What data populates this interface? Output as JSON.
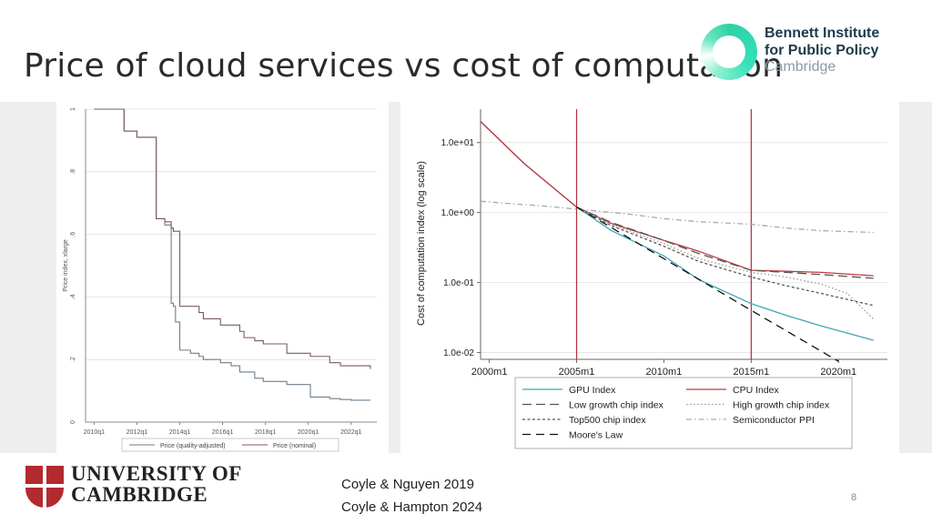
{
  "slide": {
    "title": "Price of cloud services vs cost of computation",
    "page_number": "8",
    "citations": [
      "Coyle & Nguyen 2019",
      "Coyle & Hampton 2024"
    ],
    "bennett_logo": [
      "Bennett Institute",
      "for Public Policy",
      "Cambridge"
    ],
    "cambridge_logo": [
      "UNIVERSITY OF",
      "CAMBRIDGE"
    ],
    "colors": {
      "bennett_green": "#2fd1a6",
      "cambridge_red": "#b22a2e"
    }
  },
  "chart_data": [
    {
      "type": "line",
      "ylabel": "Price index, xlarge",
      "xlabel": "",
      "ylim": [
        0,
        1
      ],
      "yticks": [
        "0",
        ".2",
        ".4",
        ".6",
        ".8",
        "1"
      ],
      "xticks": [
        "2010q1",
        "2012q1",
        "2014q1",
        "2016q1",
        "2018q1",
        "2020q1",
        "2022q1"
      ],
      "grid": true,
      "legend_position": "bottom",
      "x": [
        2010.0,
        2011.0,
        2011.4,
        2011.6,
        2012.0,
        2012.4,
        2012.8,
        2012.9,
        2013.2,
        2013.3,
        2013.6,
        2013.7,
        2013.8,
        2014.0,
        2014.3,
        2014.5,
        2014.9,
        2015.1,
        2015.5,
        2015.9,
        2016.4,
        2016.8,
        2017.0,
        2017.5,
        2017.9,
        2018.3,
        2019.0,
        2019.9,
        2020.1,
        2021.0,
        2021.5,
        2022.0,
        2022.9
      ],
      "series": [
        {
          "name": "Price (quality-adjusted)",
          "color": "#6e7f8c",
          "values": [
            1.0,
            1.0,
            0.93,
            0.93,
            0.91,
            0.91,
            0.91,
            0.65,
            0.65,
            0.63,
            0.38,
            0.37,
            0.32,
            0.23,
            0.23,
            0.22,
            0.21,
            0.2,
            0.2,
            0.19,
            0.18,
            0.16,
            0.16,
            0.14,
            0.13,
            0.13,
            0.12,
            0.12,
            0.08,
            0.075,
            0.072,
            0.07,
            0.07
          ]
        },
        {
          "name": "Price (nominal)",
          "color": "#7c5a5a",
          "values": [
            1.0,
            1.0,
            0.93,
            0.93,
            0.91,
            0.91,
            0.91,
            0.65,
            0.65,
            0.64,
            0.62,
            0.61,
            0.61,
            0.37,
            0.37,
            0.37,
            0.35,
            0.33,
            0.33,
            0.31,
            0.31,
            0.29,
            0.27,
            0.26,
            0.25,
            0.25,
            0.22,
            0.22,
            0.21,
            0.19,
            0.18,
            0.18,
            0.17
          ]
        }
      ]
    },
    {
      "type": "line",
      "ylabel": "Cost of computation index (log scale)",
      "xlabel": "",
      "yscale": "log",
      "ylim": [
        0.008,
        30
      ],
      "yticks": [
        "1.0e+01",
        "1.0e+00",
        "1.0e-01",
        "1.0e-02"
      ],
      "xticks": [
        "2000m1",
        "2005m1",
        "2010m1",
        "2015m1",
        "2020m1"
      ],
      "xlim": [
        1999.5,
        2022.8
      ],
      "vertical_lines": [
        2005.0,
        2015.0
      ],
      "grid": true,
      "legend_position": "bottom",
      "series": [
        {
          "name": "GPU Index",
          "color": "#3fa7b6",
          "dash": "solid",
          "x": [
            1999.5,
            2002,
            2005,
            2007,
            2010,
            2012,
            2015,
            2017,
            2019,
            2022
          ],
          "values": [
            20,
            5,
            1.2,
            0.55,
            0.24,
            0.11,
            0.05,
            0.034,
            0.024,
            0.015
          ]
        },
        {
          "name": "CPU Index",
          "color": "#c0393f",
          "dash": "solid",
          "x": [
            1999.5,
            2002,
            2005,
            2007,
            2010,
            2012,
            2015,
            2017,
            2019,
            2022
          ],
          "values": [
            20,
            5,
            1.2,
            0.7,
            0.4,
            0.28,
            0.15,
            0.145,
            0.14,
            0.125
          ]
        },
        {
          "name": "Low growth chip index",
          "color": "#555555",
          "dash": "longdash",
          "x": [
            2005,
            2007,
            2010,
            2012,
            2015,
            2017,
            2019,
            2022
          ],
          "values": [
            1.2,
            0.72,
            0.4,
            0.26,
            0.15,
            0.14,
            0.13,
            0.115
          ]
        },
        {
          "name": "High growth chip index",
          "color": "#999999",
          "dash": "dot",
          "x": [
            2005,
            2007,
            2010,
            2012,
            2015,
            2017,
            2019,
            2020.5,
            2022
          ],
          "values": [
            1.2,
            0.68,
            0.36,
            0.22,
            0.14,
            0.12,
            0.095,
            0.07,
            0.03
          ]
        },
        {
          "name": "Top500 chip index",
          "color": "#555555",
          "dash": "shortdash",
          "x": [
            2005,
            2007,
            2010,
            2012,
            2015,
            2017,
            2019,
            2022
          ],
          "values": [
            1.2,
            0.65,
            0.33,
            0.2,
            0.12,
            0.09,
            0.07,
            0.047
          ]
        },
        {
          "name": "Semiconductor PPI",
          "color": "#aaaaaa",
          "dash": "dashdot",
          "x": [
            1999.5,
            2001,
            2003,
            2005,
            2008,
            2010,
            2012,
            2015,
            2017,
            2019,
            2022
          ],
          "values": [
            1.45,
            1.35,
            1.25,
            1.12,
            0.95,
            0.82,
            0.74,
            0.68,
            0.6,
            0.55,
            0.52
          ]
        },
        {
          "name": "Moore's Law",
          "color": "#111111",
          "dash": "longdash2",
          "x": [
            2005,
            2010,
            2015,
            2020
          ],
          "values": [
            1.2,
            0.22,
            0.04,
            0.0075
          ]
        }
      ]
    }
  ]
}
